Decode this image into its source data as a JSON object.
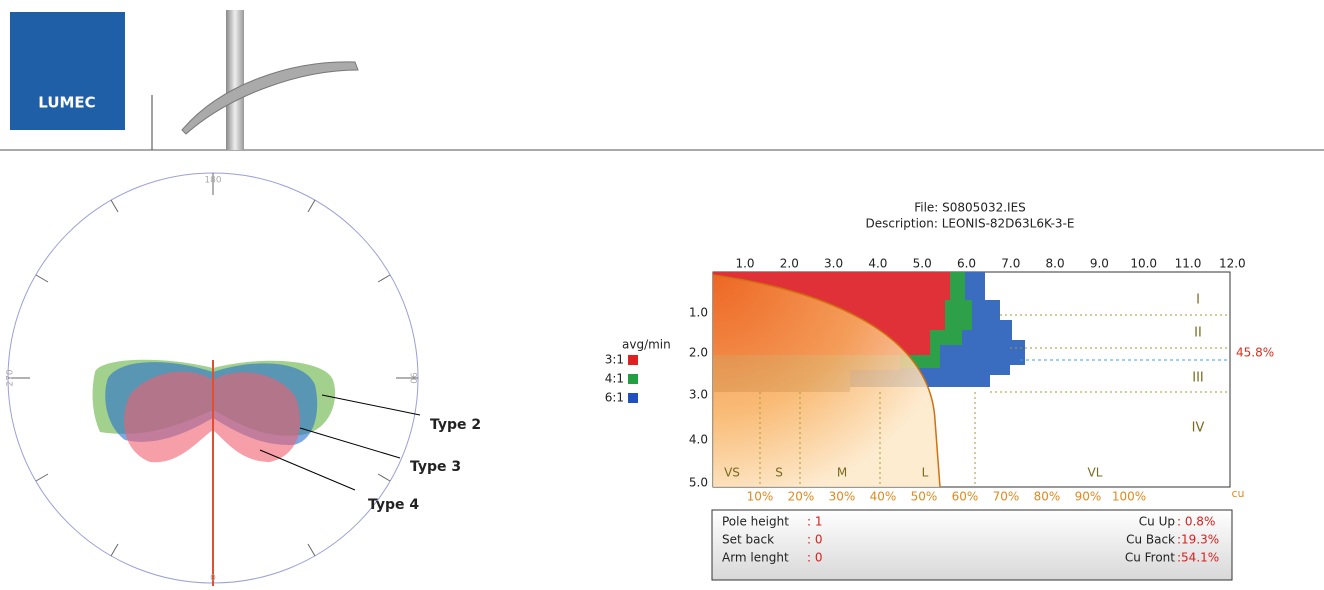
{
  "header": {
    "logo": "LUMEC"
  },
  "polar": {
    "labels": [
      "180",
      "270",
      "90",
      "0"
    ],
    "annotations": [
      "Type 2",
      "Type 3",
      "Type 4"
    ]
  },
  "chart": {
    "file": "File: S0805032.IES",
    "description": "Description: LEONIS-82D63L6K-3-E",
    "top_axis": [
      "1.0",
      "2.0",
      "3.0",
      "4.0",
      "5.0",
      "6.0",
      "7.0",
      "8.0",
      "9.0",
      "10.0",
      "11.0",
      "12.0"
    ],
    "left_axis": [
      "1.0",
      "2.0",
      "3.0",
      "4.0",
      "5.0"
    ],
    "legend_title": "avg/min",
    "legend": [
      "3:1",
      "4:1",
      "6:1"
    ],
    "classes": [
      "I",
      "II",
      "III",
      "IV"
    ],
    "marker": "45.8%",
    "zones": [
      "VS",
      "S",
      "M",
      "L",
      "VL"
    ],
    "bottom_axis": [
      "10%",
      "20%",
      "30%",
      "40%",
      "50%",
      "60%",
      "70%",
      "80%",
      "90%",
      "100%"
    ],
    "bottom_unit": "cu"
  },
  "info": {
    "rows": [
      [
        "Pole height",
        ": 1",
        "Cu Up",
        ": 0.8%"
      ],
      [
        "Set back",
        ": 0",
        "Cu Back",
        ":19.3%"
      ],
      [
        "Arm lenght",
        ": 0",
        "Cu Front",
        ":54.1%"
      ]
    ]
  }
}
